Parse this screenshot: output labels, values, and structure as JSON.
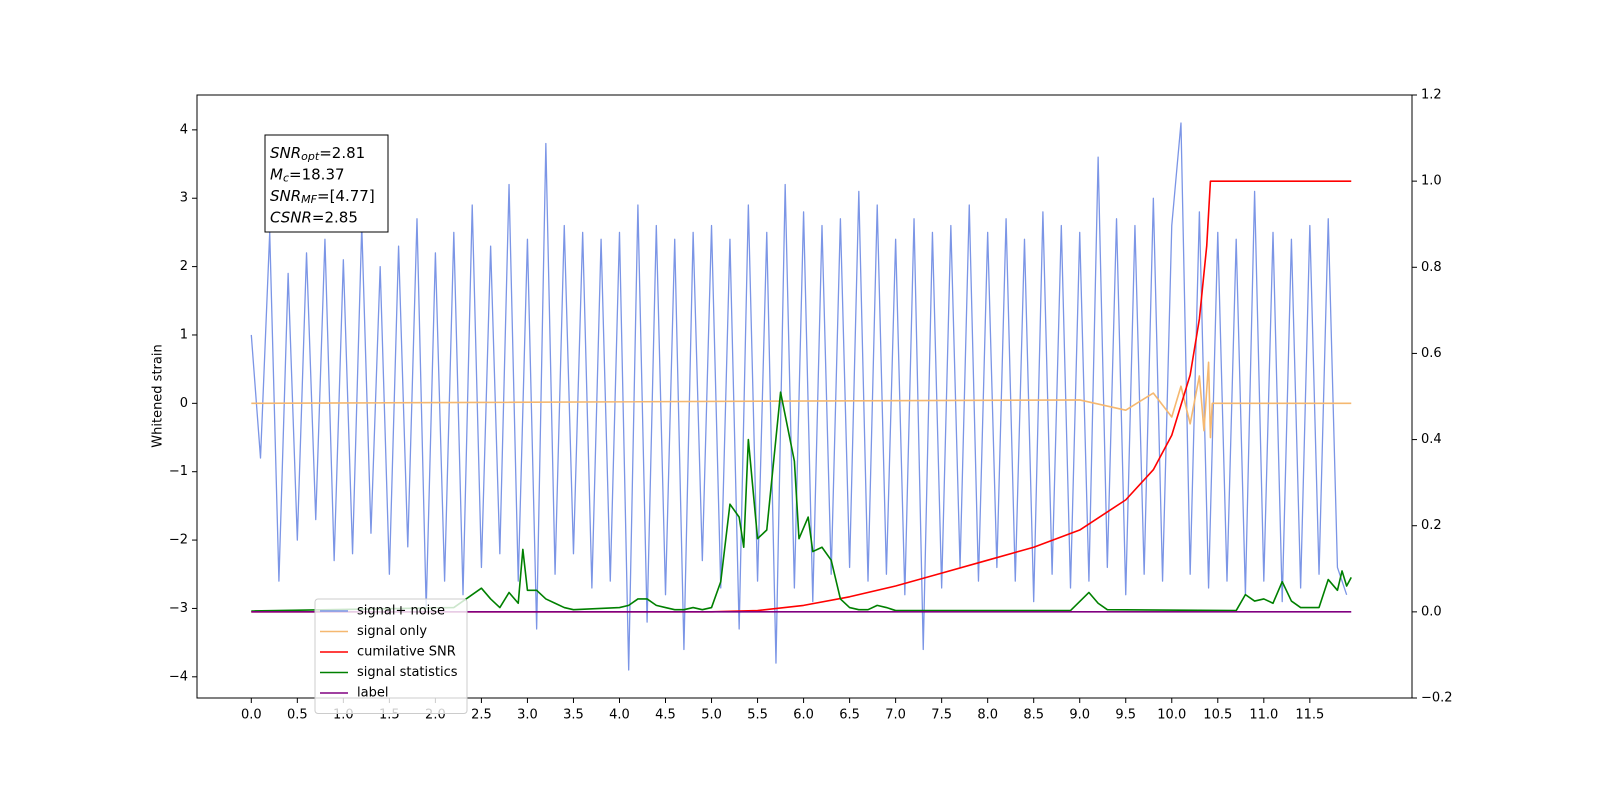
{
  "chart_data": {
    "type": "line",
    "ylabel": "Whitened strain",
    "xlim": [
      -0.59,
      12.61
    ],
    "xticks": [
      {
        "value": 0,
        "label": "0.0"
      },
      0.5,
      {
        "value": 1,
        "label": "1.0"
      },
      1.5,
      {
        "value": 2,
        "label": "2.0"
      },
      2.5,
      {
        "value": 3,
        "label": "3.0"
      },
      3.5,
      {
        "value": 4,
        "label": "4.0"
      },
      4.5,
      {
        "value": 5,
        "label": "5.0"
      },
      5.5,
      {
        "value": 6,
        "label": "6.0"
      },
      6.5,
      {
        "value": 7,
        "label": "7.0"
      },
      7.5,
      {
        "value": 8,
        "label": "8.0"
      },
      8.5,
      {
        "value": 9,
        "label": "9.0"
      },
      9.5,
      {
        "value": 10,
        "label": "10.0"
      },
      10.5,
      {
        "value": 11,
        "label": "11.0"
      },
      11.5
    ],
    "ylim": [
      -4.31,
      4.51
    ],
    "yticks": [
      {
        "value": -4,
        "label": "−4"
      },
      {
        "value": -3,
        "label": "−3"
      },
      {
        "value": -2,
        "label": "−2"
      },
      {
        "value": -1,
        "label": "−1"
      },
      0,
      1,
      2,
      3,
      4
    ],
    "y2lim": [
      -0.2,
      1.2
    ],
    "y2ticks": [
      {
        "value": -0.2,
        "label": "−0.2"
      },
      {
        "value": 0,
        "label": "0.0"
      },
      0.2,
      0.4,
      0.6,
      0.8,
      {
        "value": 1,
        "label": "1.0"
      },
      1.2
    ],
    "legend": "lower left",
    "annotations": [
      {
        "symbol": "SNR",
        "subscript": "opt",
        "text": "=2.81"
      },
      {
        "symbol": "M",
        "subscript": "c",
        "text": "=18.37"
      },
      {
        "symbol": "SNR",
        "subscript": "MF",
        "text": "=[4.77]"
      },
      {
        "symbol": "CSNR",
        "subscript": null,
        "text": "=2.85"
      }
    ],
    "series": [
      {
        "name": "signal+ noise",
        "color": "#7b95e6",
        "x": [
          0.0,
          0.1,
          0.2,
          0.3,
          0.4,
          0.5,
          0.6,
          0.7,
          0.8,
          0.9,
          1.0,
          1.1,
          1.2,
          1.3,
          1.4,
          1.5,
          1.6,
          1.7,
          1.8,
          1.9,
          2.0,
          2.1,
          2.2,
          2.3,
          2.4,
          2.5,
          2.6,
          2.7,
          2.8,
          2.9,
          3.0,
          3.1,
          3.2,
          3.3,
          3.4,
          3.5,
          3.6,
          3.7,
          3.8,
          3.9,
          4.0,
          4.1,
          4.2,
          4.3,
          4.4,
          4.5,
          4.6,
          4.7,
          4.8,
          4.9,
          5.0,
          5.1,
          5.2,
          5.3,
          5.4,
          5.5,
          5.6,
          5.7,
          5.8,
          5.9,
          6.0,
          6.1,
          6.2,
          6.3,
          6.4,
          6.5,
          6.6,
          6.7,
          6.8,
          6.9,
          7.0,
          7.1,
          7.2,
          7.3,
          7.4,
          7.5,
          7.6,
          7.7,
          7.8,
          7.9,
          8.0,
          8.1,
          8.2,
          8.3,
          8.4,
          8.5,
          8.6,
          8.7,
          8.8,
          8.9,
          9.0,
          9.1,
          9.2,
          9.3,
          9.4,
          9.5,
          9.6,
          9.7,
          9.8,
          9.9,
          10.0,
          10.1,
          10.2,
          10.3,
          10.4,
          10.5,
          10.6,
          10.7,
          10.8,
          10.9,
          11.0,
          11.1,
          11.2,
          11.3,
          11.4,
          11.5,
          11.6,
          11.7,
          11.8,
          11.9
        ],
        "values": [
          1.0,
          -0.8,
          2.5,
          -2.6,
          1.9,
          -2.0,
          2.2,
          -1.7,
          2.4,
          -2.3,
          2.1,
          -2.2,
          2.6,
          -1.9,
          2.0,
          -2.5,
          2.3,
          -2.1,
          2.7,
          -3.0,
          2.2,
          -2.6,
          2.5,
          -2.8,
          2.9,
          -2.4,
          2.3,
          -2.2,
          3.2,
          -2.6,
          2.4,
          -3.3,
          3.8,
          -2.5,
          2.6,
          -2.2,
          2.5,
          -2.7,
          2.4,
          -2.6,
          2.5,
          -3.9,
          2.9,
          -3.2,
          2.6,
          -2.8,
          2.4,
          -3.6,
          2.5,
          -2.3,
          2.6,
          -2.7,
          2.4,
          -3.3,
          2.9,
          -2.6,
          2.5,
          -3.8,
          3.2,
          -2.7,
          2.8,
          -2.9,
          2.6,
          -2.5,
          2.7,
          -2.4,
          3.1,
          -2.6,
          2.9,
          -2.5,
          2.4,
          -2.8,
          2.7,
          -3.6,
          2.5,
          -2.7,
          2.6,
          -2.4,
          2.9,
          -2.6,
          2.5,
          -2.4,
          2.7,
          -2.6,
          2.4,
          -2.9,
          2.8,
          -2.5,
          2.6,
          -2.7,
          2.5,
          -2.6,
          3.6,
          -2.4,
          2.7,
          -2.8,
          2.6,
          -2.5,
          3.0,
          -2.6,
          2.6,
          4.1,
          -2.5,
          2.8,
          -2.7,
          2.5,
          -2.6,
          2.4,
          -2.8,
          3.1,
          -2.6,
          2.5,
          -2.9,
          2.4,
          -2.7,
          2.6,
          -2.5,
          2.7,
          -2.4,
          -2.8
        ]
      },
      {
        "name": "signal only",
        "color": "#f5b870",
        "x": [
          0,
          9.0,
          9.5,
          9.8,
          10.0,
          10.1,
          10.2,
          10.3,
          10.35,
          10.4,
          10.42,
          10.44,
          11.95
        ],
        "values": [
          0,
          0.05,
          -0.1,
          0.15,
          -0.2,
          0.25,
          -0.3,
          0.4,
          -0.4,
          0.6,
          -0.5,
          0,
          0
        ]
      },
      {
        "name": "cumilative SNR",
        "color": "#ff0000",
        "axis": "y2",
        "x": [
          0,
          5.0,
          5.5,
          6.0,
          6.5,
          7.0,
          7.5,
          8.0,
          8.5,
          9.0,
          9.5,
          9.8,
          10.0,
          10.2,
          10.3,
          10.38,
          10.42,
          11.95
        ],
        "values": [
          0,
          0,
          0.003,
          0.015,
          0.035,
          0.06,
          0.09,
          0.12,
          0.15,
          0.19,
          0.26,
          0.33,
          0.41,
          0.55,
          0.68,
          0.85,
          1.0,
          1.0
        ]
      },
      {
        "name": "signal statistics",
        "color": "#008000",
        "axis": "y2",
        "x": [
          0,
          2.2,
          2.5,
          2.6,
          2.7,
          2.8,
          2.9,
          2.95,
          3.0,
          3.1,
          3.2,
          3.3,
          3.4,
          3.5,
          4.0,
          4.1,
          4.2,
          4.3,
          4.4,
          4.5,
          4.6,
          4.7,
          4.8,
          4.9,
          5.0,
          5.1,
          5.2,
          5.3,
          5.35,
          5.4,
          5.5,
          5.6,
          5.75,
          5.9,
          5.95,
          6.05,
          6.1,
          6.2,
          6.3,
          6.4,
          6.5,
          6.6,
          6.7,
          6.8,
          6.9,
          7.0,
          8.9,
          9.1,
          9.2,
          9.3,
          10.7,
          10.8,
          10.9,
          11.0,
          11.1,
          11.2,
          11.3,
          11.4,
          11.6,
          11.7,
          11.8,
          11.85,
          11.9,
          11.95
        ],
        "values": [
          0.002,
          0.01,
          0.055,
          0.03,
          0.01,
          0.045,
          0.02,
          0.145,
          0.05,
          0.05,
          0.03,
          0.02,
          0.01,
          0.005,
          0.01,
          0.015,
          0.03,
          0.03,
          0.015,
          0.01,
          0.005,
          0.005,
          0.01,
          0.005,
          0.01,
          0.07,
          0.25,
          0.22,
          0.15,
          0.4,
          0.17,
          0.19,
          0.51,
          0.35,
          0.17,
          0.22,
          0.14,
          0.15,
          0.12,
          0.03,
          0.01,
          0.005,
          0.005,
          0.015,
          0.01,
          0.003,
          0.003,
          0.045,
          0.02,
          0.005,
          0.003,
          0.04,
          0.025,
          0.03,
          0.02,
          0.07,
          0.025,
          0.01,
          0.01,
          0.075,
          0.05,
          0.095,
          0.06,
          0.08
        ]
      },
      {
        "name": "label",
        "color": "#800080",
        "axis": "y2",
        "x": [
          0,
          11.95
        ],
        "values": [
          0,
          0
        ]
      }
    ]
  }
}
